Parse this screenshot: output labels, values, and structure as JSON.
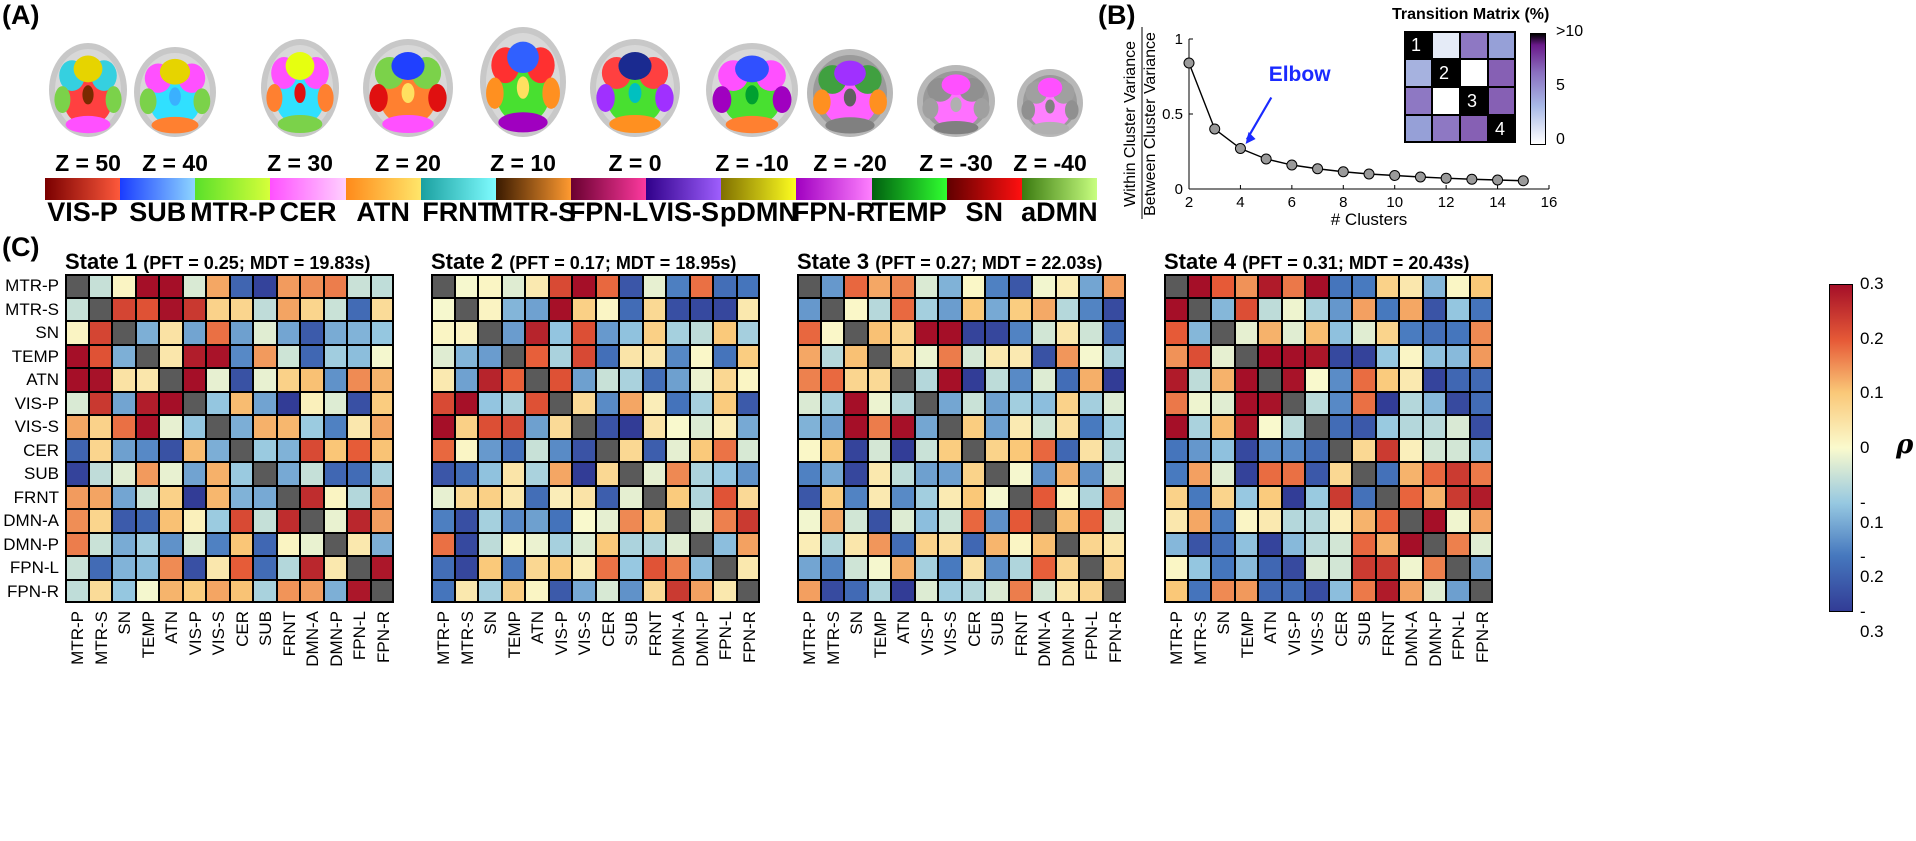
{
  "panel_labels": {
    "a": "(A)",
    "b": "(B)",
    "c": "(C)"
  },
  "panel_a": {
    "slices": [
      "Z = 50",
      "Z = 40",
      "Z = 30",
      "Z = 20",
      "Z = 10",
      "Z = 0",
      "Z = -10",
      "Z = -20",
      "Z = -30",
      "Z = -40"
    ],
    "networks": [
      {
        "name": "VIS-P",
        "from": "#7a0000",
        "to": "#ff5a3c"
      },
      {
        "name": "SUB",
        "from": "#1a3cff",
        "to": "#8fd7ff"
      },
      {
        "name": "MTR-P",
        "from": "#5ae02a",
        "to": "#d8ff3a"
      },
      {
        "name": "CER",
        "from": "#ff50ff",
        "to": "#ffd0ff"
      },
      {
        "name": "ATN",
        "from": "#ff8a1a",
        "to": "#ffe66a"
      },
      {
        "name": "FRNT",
        "from": "#1aa0a0",
        "to": "#7ffcff"
      },
      {
        "name": "MTR-S",
        "from": "#3a1a00",
        "to": "#ff9a30"
      },
      {
        "name": "FPN-L",
        "from": "#6a0030",
        "to": "#ff3aa0"
      },
      {
        "name": "VIS-S",
        "from": "#30008a",
        "to": "#a060ff"
      },
      {
        "name": "pDMN",
        "from": "#807000",
        "to": "#ffff20"
      },
      {
        "name": "FPN-R",
        "from": "#a000c0",
        "to": "#ff80ff"
      },
      {
        "name": "TEMP",
        "from": "#006010",
        "to": "#30ff30"
      },
      {
        "name": "SN",
        "from": "#600000",
        "to": "#ff1010"
      },
      {
        "name": "aDMN",
        "from": "#3a7a10",
        "to": "#c8ff80"
      }
    ]
  },
  "panel_b": {
    "chart_data": {
      "type": "line",
      "x": [
        2,
        3,
        4,
        5,
        6,
        7,
        8,
        9,
        10,
        11,
        12,
        13,
        14,
        15
      ],
      "y": [
        0.84,
        0.4,
        0.27,
        0.2,
        0.16,
        0.135,
        0.115,
        0.1,
        0.09,
        0.08,
        0.072,
        0.065,
        0.06,
        0.055
      ],
      "xlabel": "# Clusters",
      "ylabel_top": "Within Cluster Variance",
      "ylabel_bottom": "Between Cluster Variance",
      "xlim": [
        2,
        16
      ],
      "ylim": [
        0,
        1
      ],
      "xticks": [
        "2",
        "4",
        "6",
        "8",
        "10",
        "12",
        "14",
        "16"
      ],
      "yticks": [
        "0",
        "0.5",
        "1"
      ],
      "annotation": "Elbow"
    },
    "transition_matrix": {
      "title": "Transition Matrix (%)",
      "diag_labels": [
        "1",
        "2",
        "3",
        "4"
      ],
      "colorbar_ticks": [
        ">10",
        "5",
        "0"
      ],
      "values": [
        [
          100,
          1,
          7,
          5
        ],
        [
          4,
          100,
          0,
          8
        ],
        [
          7,
          0,
          100,
          8
        ],
        [
          5,
          7,
          8,
          100
        ]
      ]
    }
  },
  "panel_c": {
    "regions": [
      "MTR-P",
      "MTR-S",
      "SN",
      "TEMP",
      "ATN",
      "VIS-P",
      "VIS-S",
      "CER",
      "SUB",
      "FRNT",
      "DMN-A",
      "DMN-P",
      "FPN-L",
      "FPN-R"
    ],
    "colorbar_ticks": [
      "0.3",
      "0.2",
      "0.1",
      "0",
      "- 0.1",
      "- 0.2",
      "- 0.3"
    ],
    "colorbar_label": "ρ",
    "states": [
      {
        "name": "State 1",
        "stats": "(PFT = 0.25; MDT = 19.83s)"
      },
      {
        "name": "State 2",
        "stats": "(PFT = 0.17; MDT = 18.95s)"
      },
      {
        "name": "State 3",
        "stats": "(PFT = 0.27; MDT = 22.03s)"
      },
      {
        "name": "State 4",
        "stats": "(PFT = 0.31; MDT = 20.43s)"
      }
    ]
  }
}
